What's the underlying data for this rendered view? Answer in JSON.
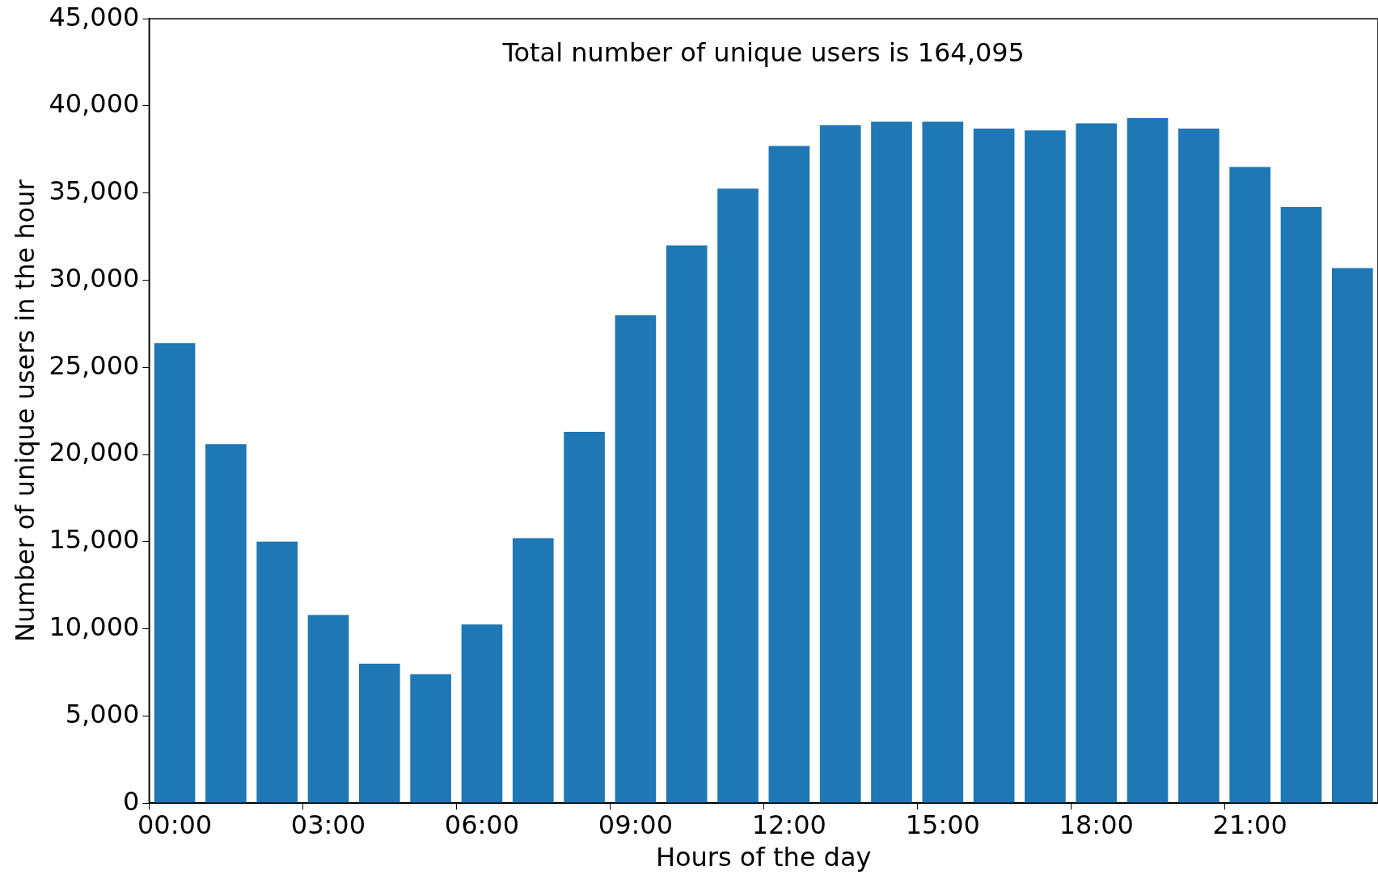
{
  "chart_data": {
    "type": "bar",
    "xlabel": "Hours of the day",
    "ylabel": "Number of unique users in the hour",
    "categories": [
      "00:00",
      null,
      null,
      "03:00",
      null,
      null,
      "06:00",
      null,
      null,
      "09:00",
      null,
      null,
      "12:00",
      null,
      null,
      "15:00",
      null,
      null,
      "18:00",
      null,
      null,
      "21:00",
      null,
      null
    ],
    "values": [
      26400,
      20600,
      15000,
      10800,
      8000,
      7400,
      10250,
      15200,
      21300,
      28000,
      32000,
      35250,
      37700,
      38900,
      39100,
      39100,
      38700,
      38600,
      39000,
      39300,
      38700,
      36500,
      34200,
      30700
    ],
    "color": "#1f77b4",
    "ylim": [
      0,
      45000
    ],
    "yticks": [
      0,
      {
        "value": 5000,
        "label": "5,000"
      },
      {
        "value": 10000,
        "label": "10,000"
      },
      {
        "value": 15000,
        "label": "15,000"
      },
      {
        "value": 20000,
        "label": "20,000"
      },
      {
        "value": 25000,
        "label": "25,000"
      },
      {
        "value": 30000,
        "label": "30,000"
      },
      {
        "value": 35000,
        "label": "35,000"
      },
      {
        "value": 40000,
        "label": "40,000"
      },
      {
        "value": 45000,
        "label": "45,000"
      }
    ],
    "annotations": [
      "Total number of unique users is 164,095"
    ],
    "grid": false,
    "legend": false
  }
}
